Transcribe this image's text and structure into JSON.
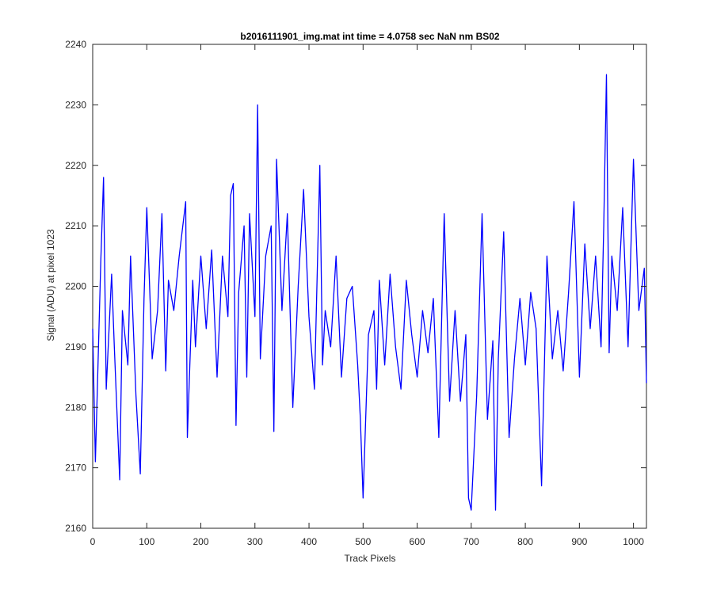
{
  "chart_data": {
    "type": "line",
    "title": "b2016111901_img.mat int time = 4.0758 sec  NaN nm BS02",
    "xlabel": "Track Pixels",
    "ylabel": "Signal (ADU) at pixel 1023",
    "xlim": [
      0,
      1024
    ],
    "ylim": [
      2160,
      2240
    ],
    "xticks": [
      0,
      100,
      200,
      300,
      400,
      500,
      600,
      700,
      800,
      900,
      1000
    ],
    "yticks": [
      2160,
      2170,
      2180,
      2190,
      2200,
      2210,
      2220,
      2230,
      2240
    ],
    "grid": false,
    "series": [
      {
        "color": "#0000ff",
        "x": [
          0,
          5,
          15,
          20,
          25,
          35,
          40,
          50,
          55,
          65,
          70,
          80,
          88,
          95,
          100,
          110,
          120,
          128,
          135,
          140,
          150,
          160,
          172,
          175,
          185,
          190,
          200,
          210,
          220,
          230,
          240,
          250,
          255,
          260,
          265,
          270,
          280,
          285,
          290,
          300,
          305,
          310,
          320,
          330,
          335,
          340,
          350,
          360,
          370,
          380,
          390,
          400,
          410,
          420,
          425,
          430,
          440,
          450,
          460,
          470,
          480,
          490,
          495,
          500,
          510,
          520,
          525,
          530,
          540,
          550,
          560,
          570,
          580,
          590,
          600,
          610,
          620,
          630,
          640,
          650,
          660,
          670,
          680,
          690,
          695,
          700,
          710,
          720,
          730,
          740,
          745,
          750,
          760,
          770,
          780,
          790,
          800,
          810,
          820,
          830,
          840,
          850,
          860,
          870,
          880,
          890,
          900,
          910,
          920,
          930,
          940,
          945,
          950,
          955,
          960,
          970,
          980,
          990,
          1000,
          1010,
          1020,
          1024
        ],
        "y": [
          2193,
          2171,
          2204,
          2218,
          2183,
          2202,
          2190,
          2168,
          2196,
          2187,
          2205,
          2182,
          2169,
          2198,
          2213,
          2188,
          2196,
          2212,
          2186,
          2201,
          2196,
          2205,
          2214,
          2175,
          2201,
          2190,
          2205,
          2193,
          2206,
          2185,
          2205,
          2195,
          2215,
          2217,
          2177,
          2199,
          2210,
          2185,
          2212,
          2195,
          2230,
          2188,
          2205,
          2210,
          2176,
          2221,
          2196,
          2212,
          2180,
          2200,
          2216,
          2195,
          2183,
          2220,
          2187,
          2196,
          2190,
          2205,
          2185,
          2198,
          2200,
          2187,
          2178,
          2165,
          2192,
          2196,
          2183,
          2201,
          2187,
          2202,
          2190,
          2183,
          2201,
          2192,
          2185,
          2196,
          2189,
          2198,
          2175,
          2212,
          2181,
          2196,
          2181,
          2192,
          2165,
          2163,
          2182,
          2212,
          2178,
          2191,
          2163,
          2188,
          2209,
          2175,
          2188,
          2198,
          2187,
          2199,
          2193,
          2167,
          2205,
          2188,
          2196,
          2186,
          2199,
          2214,
          2185,
          2207,
          2193,
          2205,
          2190,
          2210,
          2235,
          2189,
          2205,
          2196,
          2213,
          2190,
          2221,
          2196,
          2203,
          2184
        ]
      }
    ]
  }
}
